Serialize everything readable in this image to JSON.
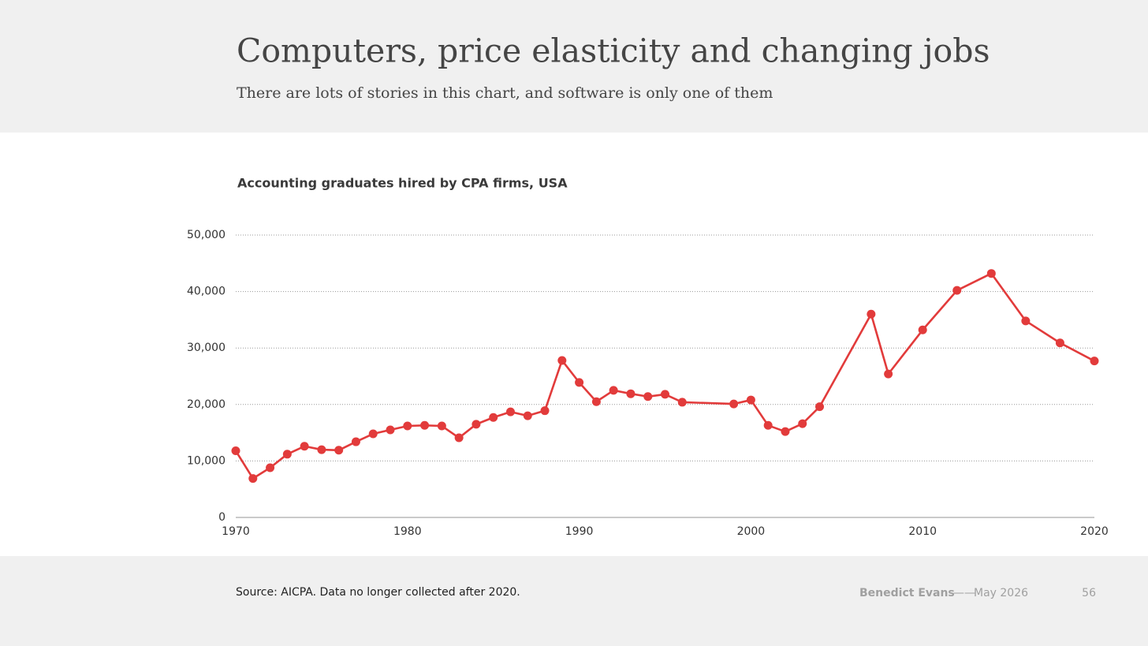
{
  "slide": {
    "title": "Computers, price elasticity and changing jobs",
    "subtitle": "There are lots of stories in this chart, and software is only one of them"
  },
  "chart_data": {
    "type": "line",
    "title": "Accounting graduates hired by CPA firms, USA",
    "x": [
      1970,
      1971,
      1972,
      1973,
      1974,
      1975,
      1976,
      1977,
      1978,
      1979,
      1980,
      1981,
      1982,
      1983,
      1984,
      1985,
      1986,
      1987,
      1988,
      1989,
      1990,
      1991,
      1992,
      1993,
      1994,
      1995,
      1996,
      1999,
      2000,
      2001,
      2002,
      2003,
      2004,
      2007,
      2008,
      2010,
      2012,
      2014,
      2016,
      2018,
      2020
    ],
    "values": [
      11800,
      6900,
      8800,
      11200,
      12600,
      12000,
      11900,
      13400,
      14800,
      15500,
      16200,
      16300,
      16200,
      14100,
      16500,
      17700,
      18700,
      18000,
      18900,
      27800,
      23900,
      20500,
      22500,
      21900,
      21400,
      21800,
      20400,
      20100,
      20800,
      16300,
      15200,
      16600,
      19600,
      36000,
      25400,
      33200,
      40200,
      43200,
      34800,
      30900,
      27700
    ],
    "color": "#e23b3b",
    "xlim": [
      1970,
      2020
    ],
    "xticks": [
      1970,
      1980,
      1990,
      2000,
      2010,
      2020
    ],
    "ylim": [
      0,
      50000
    ],
    "yticks": [
      0,
      {
        "value": 10000,
        "label": "10,000"
      },
      {
        "value": 20000,
        "label": "20,000"
      },
      {
        "value": 30000,
        "label": "30,000"
      },
      {
        "value": 40000,
        "label": "40,000"
      },
      {
        "value": 50000,
        "label": "50,000"
      }
    ],
    "grid": true
  },
  "footer": {
    "source": "Source: AICPA. Data no longer collected after 2020.",
    "author": "Benedict Evans",
    "separator": "——",
    "date": "May 2026",
    "page": "56"
  }
}
